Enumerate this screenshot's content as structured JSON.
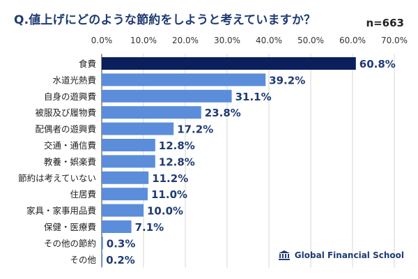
{
  "title": "Q.値上げにどのような節約をしようと考えていますか？",
  "sample_label": "n=663",
  "logo_text": "Global Financial School",
  "colors": {
    "highlight_bar": "#0b1f5c",
    "bar": "#5b8ddb",
    "value_text": "#1f3b73",
    "grid": "#cccccc"
  },
  "chart_data": {
    "type": "bar",
    "orientation": "horizontal",
    "title": "Q.値上げにどのような節約をしようと考えていますか？",
    "xlim": [
      0,
      70
    ],
    "x_ticks": [
      "0.0%",
      "10.0%",
      "20.0%",
      "30.0%",
      "40.0%",
      "50.0%",
      "60.0%",
      "70.0%"
    ],
    "grid": true,
    "categories": [
      "食費",
      "水道光熱費",
      "自身の遊興費",
      "被服及び履物費",
      "配偶者の遊興費",
      "交通・通信費",
      "教養・娯楽費",
      "節約は考えていない",
      "住居費",
      "家具・家事用品費",
      "保健・医療費",
      "その他の節約",
      "その他"
    ],
    "values": [
      60.8,
      39.2,
      31.1,
      23.8,
      17.2,
      12.8,
      12.8,
      11.2,
      11.0,
      10.0,
      7.1,
      0.3,
      0.2
    ],
    "value_labels": [
      "60.8%",
      "39.2%",
      "31.1%",
      "23.8%",
      "17.2%",
      "12.8%",
      "12.8%",
      "11.2%",
      "11.0%",
      "10.0%",
      "7.1%",
      "0.3%",
      "0.2%"
    ],
    "highlight_index": 0
  }
}
